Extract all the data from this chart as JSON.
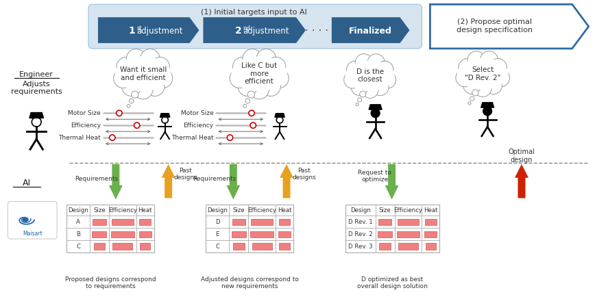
{
  "bg_color": "#ffffff",
  "light_blue_box": "#d6e4f0",
  "dark_blue_btn": "#2e5f8a",
  "arrow_blue_outline": "#2e6ca6",
  "title1": "(1) Initial targets input to AI",
  "btn3": "Finalized",
  "title2": "(2) Propose optimal\ndesign specification",
  "cloud1": "Want it small\nand efficient",
  "cloud2": "Like C but\nmore\nefficient",
  "cloud3": "D is the\nclosest",
  "cloud4": "Select\n\"D Rev. 2\"",
  "engineer_label": "Engineer",
  "adjusts_label": "Adjusts\nrequirements",
  "ai_label": "AI",
  "optimal_label": "Optimal\ndesign",
  "req1": "Requirements",
  "past1": "Past\ndesigns",
  "req2": "Requirements",
  "past2": "Past\ndesigns",
  "req3": "Request to\noptimize",
  "table1_caption": "Proposed designs correspond\nto requirements",
  "table2_caption": "Adjusted designs correspond to\nnew requirements",
  "table3_caption": "D optimized as best\noverall design solution",
  "table1_rows": [
    "A",
    "B",
    "C"
  ],
  "table2_rows": [
    "D",
    "E",
    "C"
  ],
  "table3_rows": [
    "D Rev. 1",
    "D Rev. 2",
    "D Rev. 3"
  ],
  "table_headers": [
    "Design",
    "Size",
    "Efficiency",
    "Heat"
  ],
  "pink_bar_color": "#f08080",
  "green_arrow_color": "#6ab04c",
  "yellow_arrow_color": "#e8a020",
  "red_arrow_color": "#cc2200",
  "slider_color": "#bbbbbb",
  "circle_color_red": "#cc0000",
  "text_color": "#333333",
  "label_color": "#222222"
}
